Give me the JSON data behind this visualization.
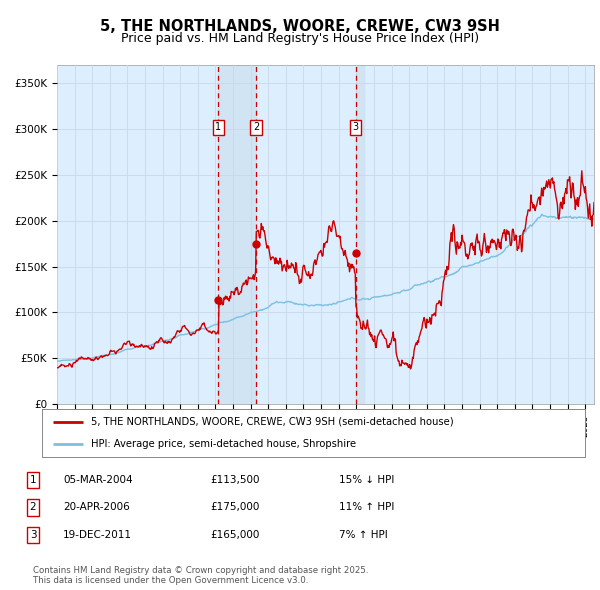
{
  "title": "5, THE NORTHLANDS, WOORE, CREWE, CW3 9SH",
  "subtitle": "Price paid vs. HM Land Registry's House Price Index (HPI)",
  "ylabel_ticks": [
    "£0",
    "£50K",
    "£100K",
    "£150K",
    "£200K",
    "£250K",
    "£300K",
    "£350K"
  ],
  "ytick_values": [
    0,
    50000,
    100000,
    150000,
    200000,
    250000,
    300000,
    350000
  ],
  "ylim": [
    0,
    370000
  ],
  "xlim_start": 1995.0,
  "xlim_end": 2025.5,
  "legend_line1": "5, THE NORTHLANDS, WOORE, CREWE, CW3 9SH (semi-detached house)",
  "legend_line2": "HPI: Average price, semi-detached house, Shropshire",
  "sale1_date": 2004.17,
  "sale1_price": 113500,
  "sale2_date": 2006.3,
  "sale2_price": 175000,
  "sale3_date": 2011.96,
  "sale3_price": 165000,
  "table_data": [
    [
      "1",
      "05-MAR-2004",
      "£113,500",
      "15% ↓ HPI"
    ],
    [
      "2",
      "20-APR-2006",
      "£175,000",
      "11% ↑ HPI"
    ],
    [
      "3",
      "19-DEC-2011",
      "£165,000",
      "7% ↑ HPI"
    ]
  ],
  "footnote": "Contains HM Land Registry data © Crown copyright and database right 2025.\nThis data is licensed under the Open Government Licence v3.0.",
  "hpi_color": "#7fbfdf",
  "price_color": "#cc0000",
  "vline_color": "#cc0000",
  "shade_color": "#cce0f0",
  "grid_color": "#c8d8e8",
  "bg_color": "#ddeeff",
  "title_fontsize": 10.5,
  "subtitle_fontsize": 9
}
